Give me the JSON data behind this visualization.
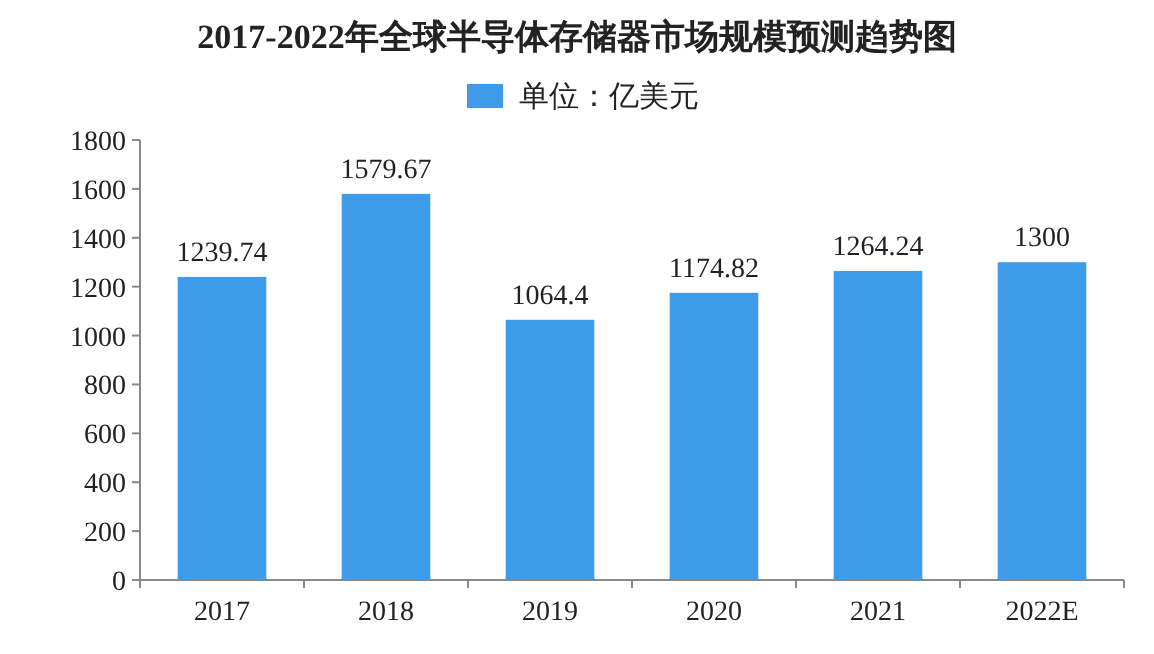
{
  "chart_data": {
    "type": "bar",
    "title": "2017-2022年全球半导体存储器市场规模预测趋势图",
    "categories": [
      "2017",
      "2018",
      "2019",
      "2020",
      "2021",
      "2022E"
    ],
    "series": [
      {
        "name": "单位：亿美元",
        "color": "#3d9be9",
        "values": [
          1239.74,
          1579.67,
          1064.4,
          1174.82,
          1264.24,
          1300
        ]
      }
    ],
    "ylim": [
      0,
      1800
    ],
    "yticks": [
      0,
      200,
      400,
      600,
      800,
      1000,
      1200,
      1400,
      1600,
      1800
    ],
    "legend": "top",
    "data_labels": true
  }
}
